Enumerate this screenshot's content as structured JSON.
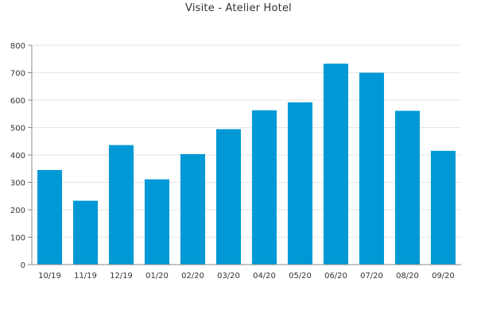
{
  "chart_data": {
    "type": "bar",
    "title": "Visite - Atelier Hotel",
    "xlabel": "",
    "ylabel": "",
    "categories": [
      "10/19",
      "11/19",
      "12/19",
      "01/20",
      "02/20",
      "03/20",
      "04/20",
      "05/20",
      "06/20",
      "07/20",
      "08/20",
      "09/20"
    ],
    "values": [
      345,
      233,
      436,
      311,
      403,
      494,
      563,
      592,
      733,
      700,
      561,
      415
    ],
    "ylim": [
      0,
      800
    ],
    "yticks": [
      0,
      100,
      200,
      300,
      400,
      500,
      600,
      700,
      800
    ],
    "grid": true,
    "legend": "none",
    "colors": {
      "bar": "#0099d6",
      "grid": "#e6e6e6",
      "axis": "#888888",
      "text": "#333333"
    }
  }
}
